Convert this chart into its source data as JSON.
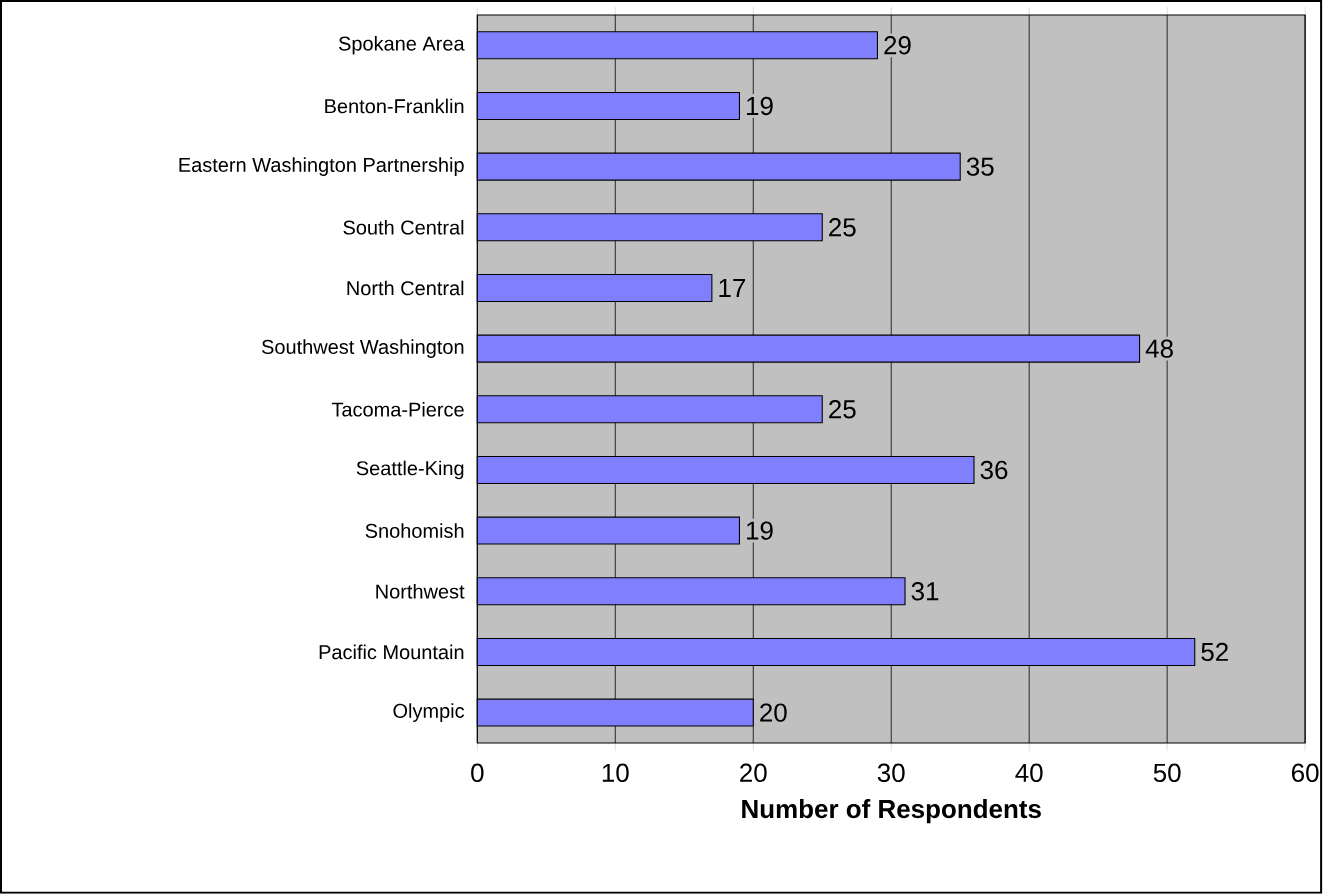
{
  "chart_data": {
    "type": "bar",
    "orientation": "horizontal",
    "xlabel": "Number of Respondents",
    "categories": [
      "Spokane Area",
      "Benton-Franklin",
      "Eastern Washington Partnership",
      "South Central",
      "North Central",
      "Southwest Washington",
      "Tacoma-Pierce",
      "Seattle-King",
      "Snohomish",
      "Northwest",
      "Pacific Mountain",
      "Olympic"
    ],
    "values": [
      29,
      19,
      35,
      25,
      17,
      48,
      25,
      36,
      19,
      31,
      52,
      20
    ],
    "color": "#8080ff",
    "xlim": [
      0,
      60
    ],
    "xticks": [
      0,
      10,
      20,
      30,
      40,
      50,
      60
    ],
    "grid": "x",
    "data_labels": true
  }
}
